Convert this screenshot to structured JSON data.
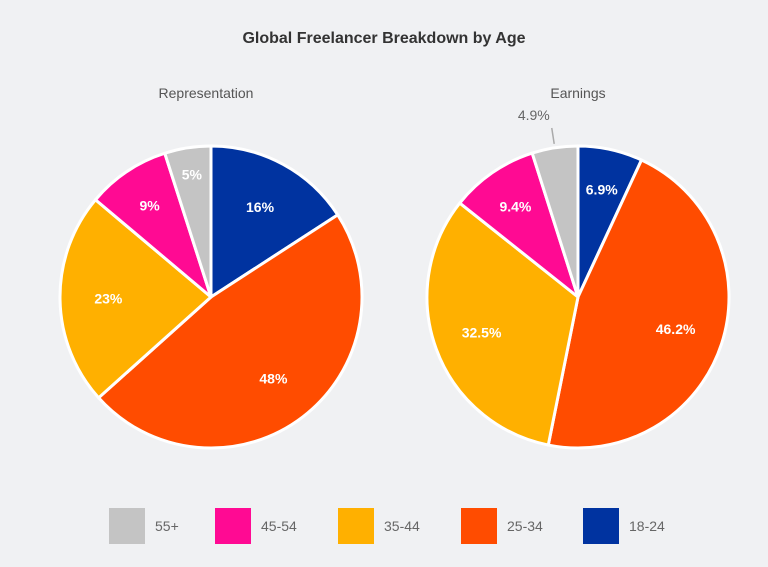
{
  "chart_data": {
    "type": "pie",
    "title": "Global Freelancer Breakdown by Age",
    "categories": [
      "18-24",
      "25-34",
      "35-44",
      "45-54",
      "55+"
    ],
    "colors": {
      "18-24": "#0033a0",
      "25-34": "#ff4c00",
      "35-44": "#ffb000",
      "45-54": "#ff0a93",
      "55+": "#c4c4c4"
    },
    "pies": [
      {
        "subtitle": "Representation",
        "values": [
          16,
          48,
          23,
          9,
          5
        ],
        "labels": [
          "16%",
          "48%",
          "23%",
          "9%",
          "5%"
        ]
      },
      {
        "subtitle": "Earnings",
        "values": [
          6.9,
          46.2,
          32.5,
          9.4,
          4.9
        ],
        "labels": [
          "6.9%",
          "46.2%",
          "32.5%",
          "9.4%",
          "4.9%"
        ]
      }
    ],
    "legend": {
      "placement": "bottom",
      "items": [
        "55+",
        "45-54",
        "35-44",
        "25-34",
        "18-24"
      ]
    }
  }
}
